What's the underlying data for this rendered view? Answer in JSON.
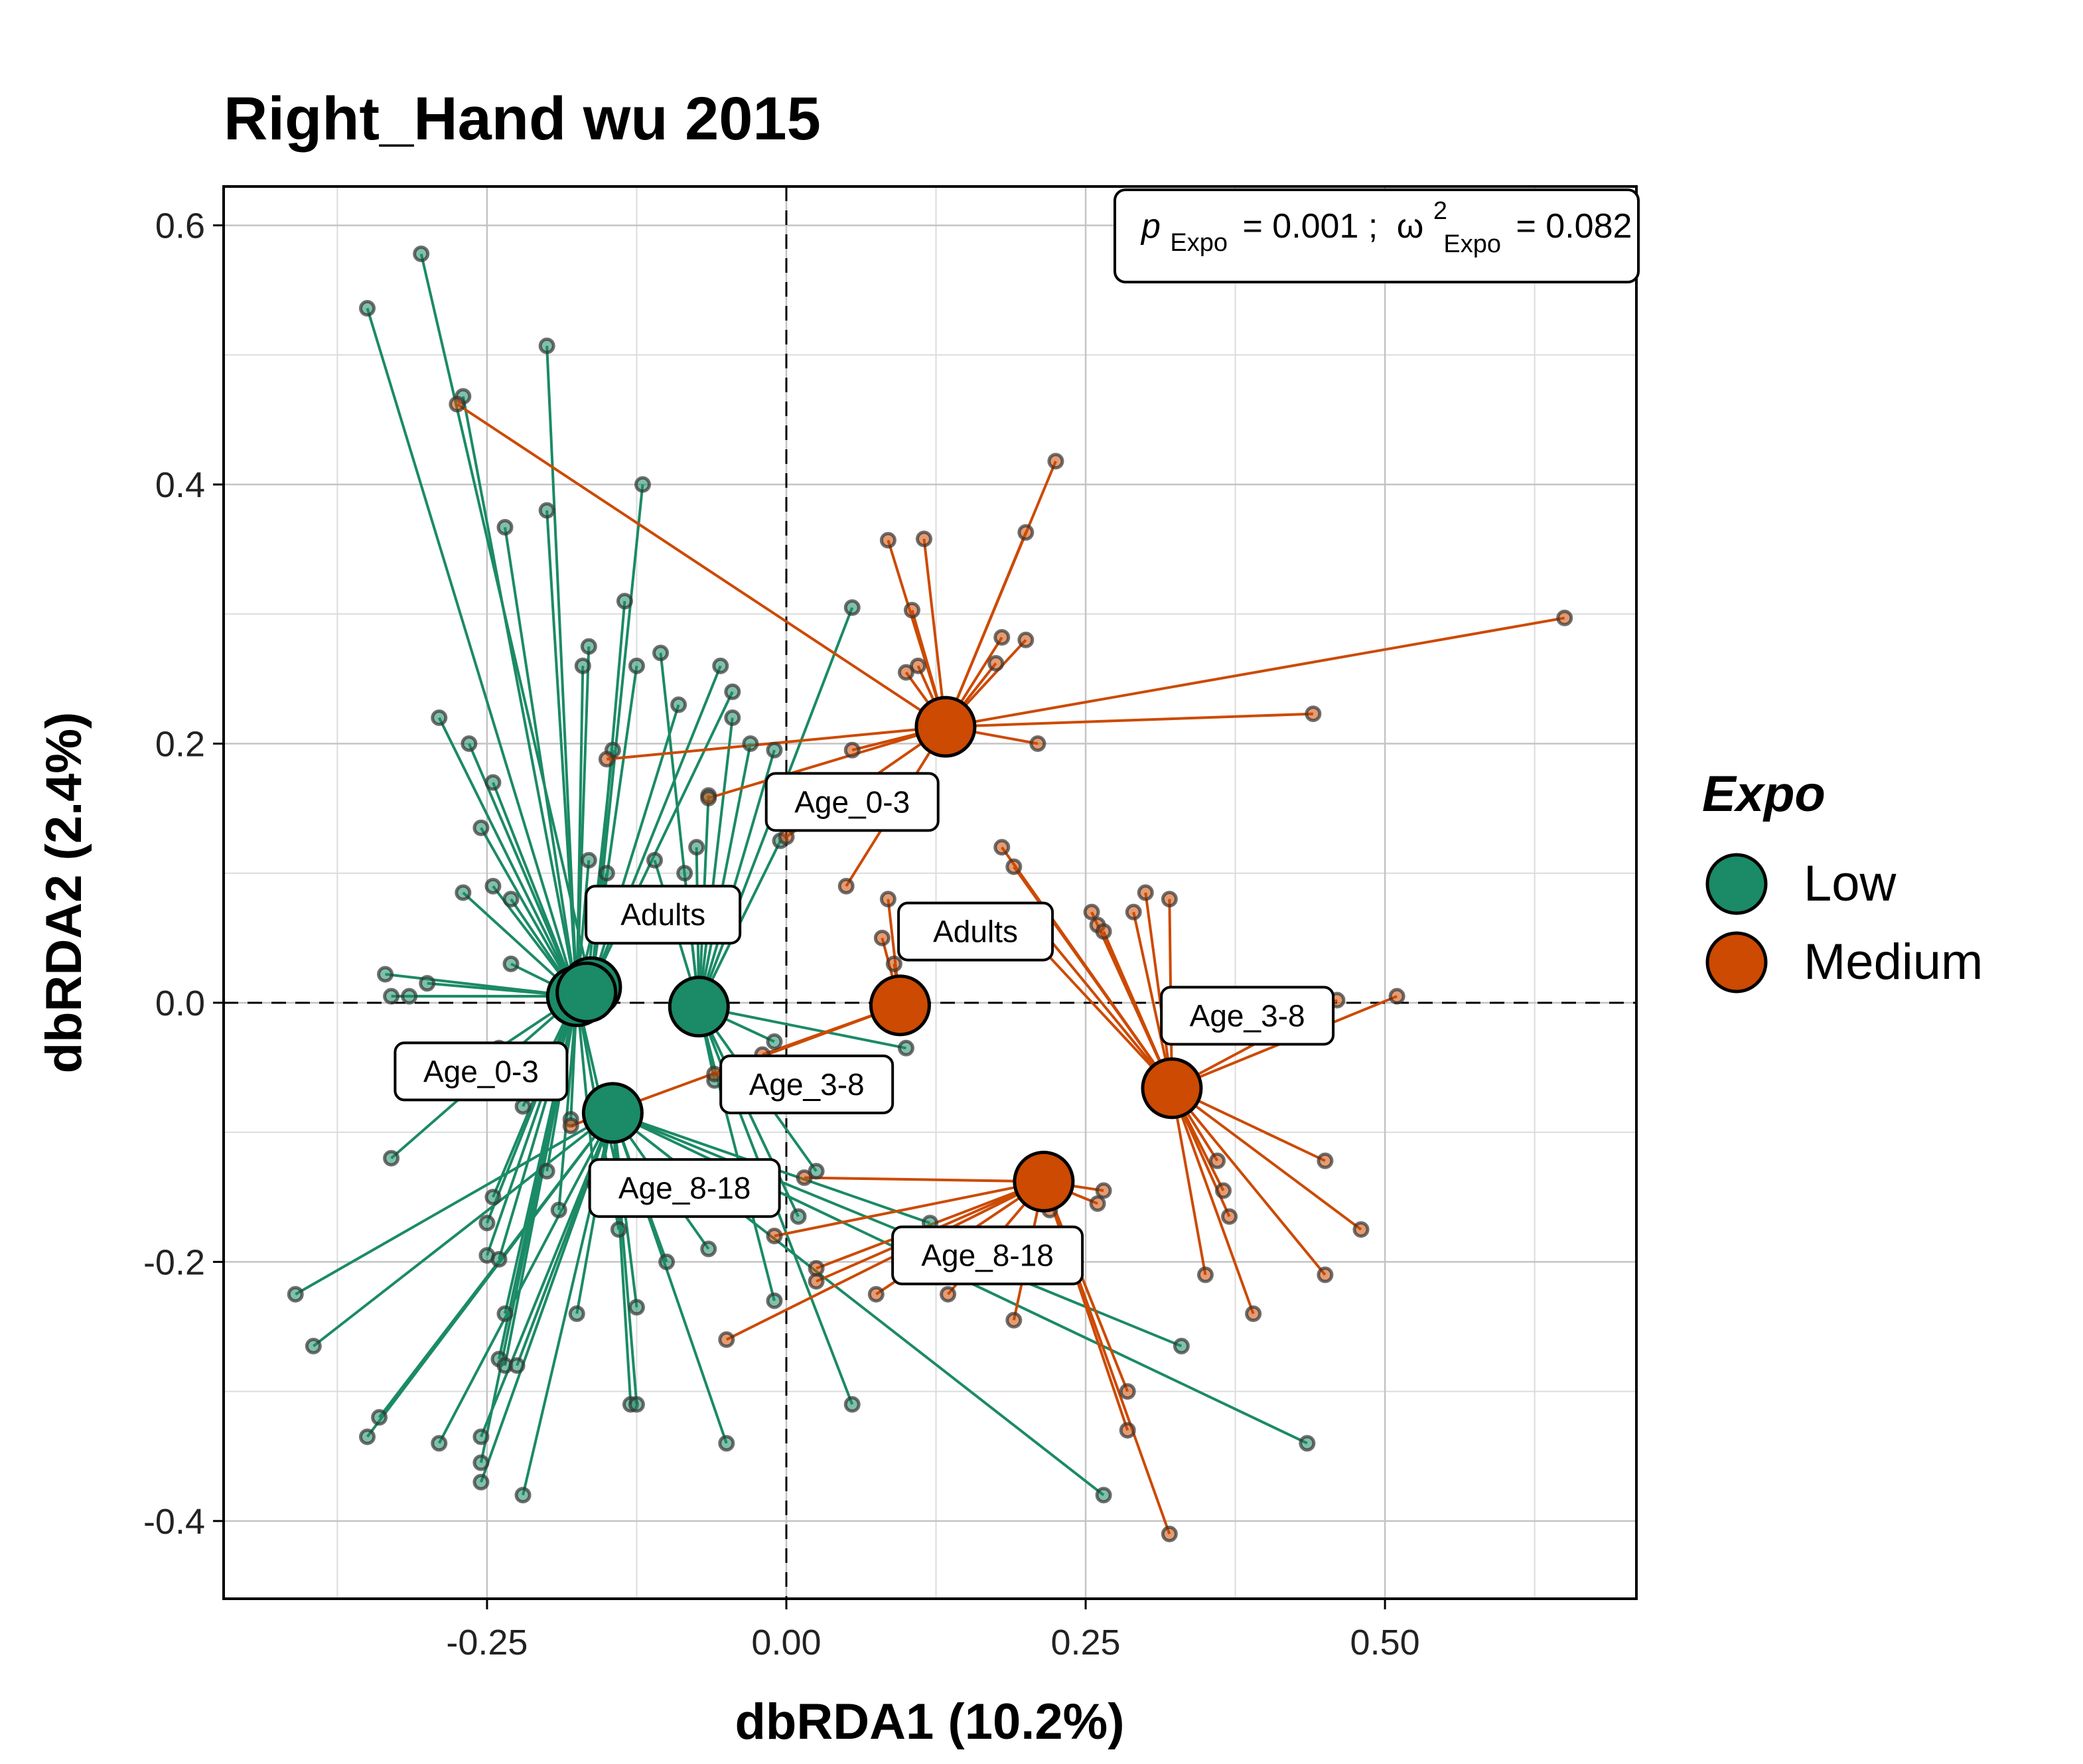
{
  "chart_data": {
    "type": "scatter",
    "title": "Right_Hand wu 2015",
    "xlabel": "dbRDA1 (10.2%)",
    "ylabel": "dbRDA2 (2.4%)",
    "xlim": [
      -0.47,
      0.71
    ],
    "ylim": [
      -0.46,
      0.63
    ],
    "xticks": [
      -0.25,
      0.0,
      0.25,
      0.5
    ],
    "xtick_labels": [
      "-0.25",
      "0.00",
      "0.25",
      "0.50"
    ],
    "yticks": [
      -0.4,
      -0.2,
      0.0,
      0.2,
      0.4,
      0.6
    ],
    "ytick_labels": [
      "-0.4",
      "-0.2",
      "0.0",
      "0.2",
      "0.4",
      "0.6"
    ],
    "grid": true,
    "reference_lines": {
      "x": 0,
      "y": 0,
      "style": "dashed"
    },
    "annotation": {
      "p_symbol": "p",
      "p_sub": "Expo",
      "p_value": "= 0.001 ;",
      "w_symbol": "ω",
      "w_sup": "2",
      "w_sub": "Expo",
      "w_value": "= 0.082"
    },
    "legend": {
      "title": "Expo",
      "position": "right",
      "entries": [
        {
          "label": "Low",
          "color": "#1b8a66"
        },
        {
          "label": "Medium",
          "color": "#cc4a02"
        }
      ]
    },
    "series": [
      {
        "name": "Low",
        "color": "#1b8a66",
        "centroids": [
          {
            "label": "Adults",
            "x": -0.175,
            "y": 0.005
          },
          {
            "label": "Adults",
            "x": -0.163,
            "y": 0.012
          },
          {
            "label": "Age_0-3",
            "x": -0.167,
            "y": 0.008
          },
          {
            "label": "Age_3-8",
            "x": -0.073,
            "y": -0.003
          },
          {
            "label": "Age_8-18",
            "x": -0.145,
            "y": -0.085
          }
        ],
        "label_positions": [
          {
            "text": "Adults",
            "x": -0.103,
            "y": 0.068
          },
          {
            "text": "Age_0-3",
            "x": -0.255,
            "y": -0.053
          },
          {
            "text": "Age_3-8",
            "x": 0.017,
            "y": -0.063
          },
          {
            "text": "Age_8-18",
            "x": -0.085,
            "y": -0.143
          }
        ],
        "points": [
          [
            -0.305,
            0.578,
            1
          ],
          [
            -0.35,
            0.536,
            0
          ],
          [
            -0.27,
            0.468,
            0
          ],
          [
            -0.2,
            0.507,
            0
          ],
          [
            -0.12,
            0.4,
            1
          ],
          [
            -0.235,
            0.367,
            0
          ],
          [
            -0.2,
            0.38,
            0
          ],
          [
            -0.135,
            0.31,
            1
          ],
          [
            -0.165,
            0.275,
            0
          ],
          [
            -0.125,
            0.26,
            1
          ],
          [
            -0.105,
            0.27,
            3
          ],
          [
            -0.055,
            0.26,
            1
          ],
          [
            -0.045,
            0.24,
            1
          ],
          [
            -0.09,
            0.23,
            1
          ],
          [
            -0.145,
            0.195,
            2
          ],
          [
            -0.29,
            0.22,
            0
          ],
          [
            -0.265,
            0.2,
            0
          ],
          [
            -0.245,
            0.17,
            0
          ],
          [
            -0.255,
            0.135,
            0
          ],
          [
            -0.17,
            0.26,
            0
          ],
          [
            -0.165,
            0.11,
            0
          ],
          [
            -0.15,
            0.1,
            0
          ],
          [
            -0.11,
            0.11,
            3
          ],
          [
            -0.085,
            0.1,
            3
          ],
          [
            -0.065,
            0.16,
            3
          ],
          [
            -0.075,
            0.12,
            3
          ],
          [
            -0.03,
            0.2,
            3
          ],
          [
            -0.045,
            0.22,
            3
          ],
          [
            -0.01,
            0.195,
            3
          ],
          [
            -0.005,
            0.125,
            3
          ],
          [
            0.055,
            0.305,
            3
          ],
          [
            -0.27,
            0.085,
            0
          ],
          [
            -0.245,
            0.09,
            0
          ],
          [
            -0.23,
            0.08,
            0
          ],
          [
            -0.23,
            0.03,
            0
          ],
          [
            -0.335,
            0.022,
            0
          ],
          [
            -0.33,
            0.005,
            0
          ],
          [
            -0.3,
            0.015,
            0
          ],
          [
            -0.315,
            0.005,
            0
          ],
          [
            -0.24,
            -0.035,
            0
          ],
          [
            -0.22,
            -0.08,
            0
          ],
          [
            -0.33,
            -0.12,
            0
          ],
          [
            -0.205,
            -0.065,
            0
          ],
          [
            -0.18,
            -0.09,
            0
          ],
          [
            -0.245,
            -0.15,
            0
          ],
          [
            -0.25,
            -0.17,
            0
          ],
          [
            -0.19,
            -0.16,
            0
          ],
          [
            -0.2,
            -0.13,
            0
          ],
          [
            -0.16,
            -0.14,
            0
          ],
          [
            -0.14,
            -0.175,
            0
          ],
          [
            -0.14,
            -0.135,
            0
          ],
          [
            -0.25,
            -0.195,
            0
          ],
          [
            -0.24,
            -0.198,
            0
          ],
          [
            -0.235,
            -0.24,
            0
          ],
          [
            -0.24,
            -0.275,
            0
          ],
          [
            -0.235,
            -0.28,
            0
          ],
          [
            -0.225,
            -0.28,
            4
          ],
          [
            -0.255,
            -0.335,
            4
          ],
          [
            -0.255,
            -0.355,
            0
          ],
          [
            -0.255,
            -0.37,
            4
          ],
          [
            -0.22,
            -0.38,
            4
          ],
          [
            -0.29,
            -0.34,
            4
          ],
          [
            -0.34,
            -0.32,
            4
          ],
          [
            -0.35,
            -0.335,
            4
          ],
          [
            -0.41,
            -0.225,
            4
          ],
          [
            -0.395,
            -0.265,
            4
          ],
          [
            -0.175,
            -0.24,
            4
          ],
          [
            -0.13,
            -0.31,
            4
          ],
          [
            -0.125,
            -0.31,
            4
          ],
          [
            -0.125,
            -0.235,
            4
          ],
          [
            -0.1,
            -0.2,
            4
          ],
          [
            -0.065,
            -0.19,
            4
          ],
          [
            -0.05,
            -0.34,
            4
          ],
          [
            -0.01,
            -0.23,
            3
          ],
          [
            0.01,
            -0.165,
            3
          ],
          [
            0.055,
            -0.31,
            3
          ],
          [
            -0.01,
            -0.03,
            3
          ],
          [
            -0.06,
            -0.06,
            3
          ],
          [
            0.1,
            -0.035,
            3
          ],
          [
            0.12,
            -0.17,
            4
          ],
          [
            0.265,
            -0.38,
            4
          ],
          [
            0.33,
            -0.265,
            4
          ],
          [
            0.435,
            -0.34,
            4
          ],
          [
            0.025,
            -0.13,
            3
          ]
        ]
      },
      {
        "name": "Medium",
        "color": "#cc4a02",
        "centroids": [
          {
            "label": "Age_0-3",
            "x": 0.133,
            "y": 0.213
          },
          {
            "label": "Adults",
            "x": 0.095,
            "y": -0.002
          },
          {
            "label": "Age_3-8",
            "x": 0.322,
            "y": -0.066
          },
          {
            "label": "Age_8-18",
            "x": 0.215,
            "y": -0.138
          }
        ],
        "label_positions": [
          {
            "text": "Age_0-3",
            "x": 0.055,
            "y": 0.155
          },
          {
            "text": "Adults",
            "x": 0.158,
            "y": 0.055
          },
          {
            "text": "Age_3-8",
            "x": 0.385,
            "y": -0.01
          },
          {
            "text": "Age_8-18",
            "x": 0.168,
            "y": -0.195
          }
        ],
        "points": [
          [
            -0.275,
            0.462,
            0
          ],
          [
            0.085,
            0.357,
            0
          ],
          [
            0.115,
            0.358,
            0
          ],
          [
            0.225,
            0.418,
            0
          ],
          [
            0.2,
            0.363,
            0
          ],
          [
            0.105,
            0.303,
            0
          ],
          [
            0.18,
            0.282,
            0
          ],
          [
            0.2,
            0.28,
            0
          ],
          [
            0.175,
            0.262,
            0
          ],
          [
            0.11,
            0.26,
            0
          ],
          [
            0.1,
            0.255,
            0
          ],
          [
            0.65,
            0.297,
            0
          ],
          [
            0.44,
            0.223,
            0
          ],
          [
            0.21,
            0.2,
            0
          ],
          [
            0.055,
            0.195,
            0
          ],
          [
            -0.15,
            0.188,
            0
          ],
          [
            -0.065,
            0.158,
            0
          ],
          [
            0.0,
            0.128,
            0
          ],
          [
            0.05,
            0.09,
            0
          ],
          [
            0.085,
            0.08,
            1
          ],
          [
            0.08,
            0.05,
            1
          ],
          [
            0.09,
            0.03,
            1
          ],
          [
            0.18,
            0.12,
            2
          ],
          [
            0.19,
            0.105,
            2
          ],
          [
            0.26,
            0.06,
            2
          ],
          [
            0.255,
            0.07,
            2
          ],
          [
            0.29,
            0.07,
            2
          ],
          [
            0.3,
            0.085,
            2
          ],
          [
            0.32,
            0.08,
            2
          ],
          [
            0.265,
            0.055,
            2
          ],
          [
            0.2,
            0.055,
            2
          ],
          [
            0.21,
            0.06,
            2
          ],
          [
            0.51,
            0.005,
            2
          ],
          [
            0.46,
            0.002,
            2
          ],
          [
            0.45,
            -0.122,
            2
          ],
          [
            0.36,
            -0.122,
            2
          ],
          [
            0.365,
            -0.145,
            2
          ],
          [
            0.37,
            -0.165,
            2
          ],
          [
            0.48,
            -0.175,
            2
          ],
          [
            0.35,
            -0.21,
            2
          ],
          [
            0.39,
            -0.24,
            2
          ],
          [
            0.45,
            -0.21,
            2
          ],
          [
            0.21,
            -0.145,
            3
          ],
          [
            0.22,
            -0.16,
            3
          ],
          [
            0.26,
            -0.155,
            3
          ],
          [
            0.265,
            -0.145,
            3
          ],
          [
            0.19,
            -0.245,
            3
          ],
          [
            0.135,
            -0.225,
            3
          ],
          [
            0.075,
            -0.225,
            3
          ],
          [
            0.025,
            -0.205,
            3
          ],
          [
            0.025,
            -0.215,
            3
          ],
          [
            -0.01,
            -0.18,
            3
          ],
          [
            -0.05,
            -0.26,
            3
          ],
          [
            0.015,
            -0.135,
            3
          ],
          [
            0.285,
            -0.3,
            3
          ],
          [
            0.285,
            -0.33,
            3
          ],
          [
            0.32,
            -0.41,
            3
          ],
          [
            -0.06,
            -0.055,
            1
          ],
          [
            -0.18,
            -0.095,
            1
          ],
          [
            -0.02,
            -0.04,
            1
          ]
        ]
      }
    ]
  }
}
